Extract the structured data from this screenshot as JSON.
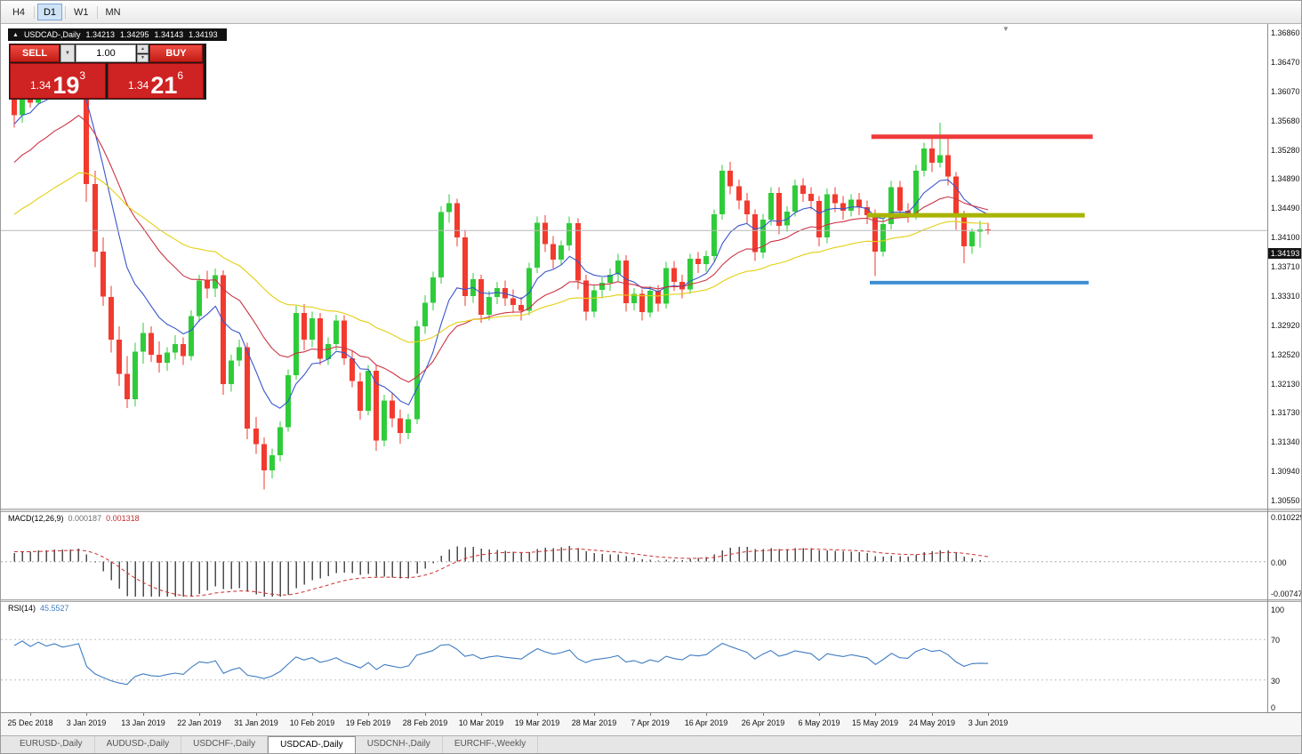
{
  "toolbar": {
    "timeframes": [
      {
        "label": "H4",
        "active": false
      },
      {
        "label": "D1",
        "active": true
      },
      {
        "label": "W1",
        "active": false
      },
      {
        "label": "MN",
        "active": false
      }
    ]
  },
  "header": {
    "collapse_icon": "▲",
    "symbol": "USDCAD-,Daily",
    "open": "1.34213",
    "high": "1.34295",
    "low": "1.34143",
    "close": "1.34193"
  },
  "trade_panel": {
    "sell_label": "SELL",
    "buy_label": "BUY",
    "volume": "1.00",
    "dropdown_icon": "▼",
    "spin_up_icon": "▲",
    "spin_down_icon": "▼",
    "bid": {
      "prefix": "1.34",
      "big": "19",
      "sup": "3"
    },
    "ask": {
      "prefix": "1.34",
      "big": "21",
      "sup": "6"
    }
  },
  "price_axis": {
    "labels": [
      "1.36860",
      "1.36470",
      "1.36070",
      "1.35680",
      "1.35280",
      "1.34890",
      "1.34490",
      "1.34100",
      "1.33710",
      "1.33310",
      "1.32920",
      "1.32520",
      "1.32130",
      "1.31730",
      "1.31340",
      "1.30940",
      "1.30550"
    ],
    "current_price": "1.34193"
  },
  "macd_panel": {
    "label": "MACD(12,26,9)",
    "value_main": "0.000187",
    "value_signal": "0.001318",
    "axis": [
      "0.010229",
      "0.00",
      "-0.007477"
    ]
  },
  "rsi_panel": {
    "label": "RSI(14)",
    "value": "45.5527",
    "axis": [
      "100",
      "70",
      "30",
      "0"
    ]
  },
  "misc": {
    "shift_marker": "▼"
  },
  "tabs": [
    {
      "label": "EURUSD-,Daily",
      "active": false
    },
    {
      "label": "AUDUSD-,Daily",
      "active": false
    },
    {
      "label": "USDCHF-,Daily",
      "active": false
    },
    {
      "label": "USDCAD-,Daily",
      "active": true
    },
    {
      "label": "USDCNH-,Daily",
      "active": false
    },
    {
      "label": "EURCHF-,Weekly",
      "active": false
    }
  ],
  "chart_data": {
    "type": "candlestick",
    "symbol": "USDCAD-",
    "timeframe": "Daily",
    "ylim": [
      1.3055,
      1.3686
    ],
    "current_price": 1.34193,
    "colors": {
      "bull": "#2fcc3a",
      "bear": "#f23a2e",
      "macd_hist": "#4d4d4d",
      "macd_signal": "#cc2f2f",
      "rsi_line": "#3f7cc1",
      "price_line": "#b8b8b8"
    },
    "candles": [
      [
        1.36,
        1.3615,
        1.3558,
        1.3575
      ],
      [
        1.3575,
        1.363,
        1.3565,
        1.3622
      ],
      [
        1.3622,
        1.3638,
        1.3585,
        1.3592
      ],
      [
        1.3592,
        1.3645,
        1.3588,
        1.3638
      ],
      [
        1.3638,
        1.3648,
        1.3608,
        1.3615
      ],
      [
        1.3615,
        1.3645,
        1.361,
        1.364
      ],
      [
        1.364,
        1.365,
        1.3612,
        1.3621
      ],
      [
        1.3621,
        1.3642,
        1.361,
        1.3636
      ],
      [
        1.3636,
        1.3665,
        1.3628,
        1.3655
      ],
      [
        1.3655,
        1.366,
        1.3458,
        1.3482
      ],
      [
        1.3482,
        1.35,
        1.337,
        1.3391
      ],
      [
        1.3391,
        1.341,
        1.3318,
        1.333
      ],
      [
        1.333,
        1.3345,
        1.3255,
        1.3272
      ],
      [
        1.3272,
        1.329,
        1.321,
        1.3226
      ],
      [
        1.3226,
        1.325,
        1.318,
        1.3192
      ],
      [
        1.3192,
        1.3268,
        1.3182,
        1.3256
      ],
      [
        1.3256,
        1.3295,
        1.324,
        1.3281
      ],
      [
        1.3281,
        1.329,
        1.3242,
        1.3252
      ],
      [
        1.3252,
        1.327,
        1.3228,
        1.3241
      ],
      [
        1.3241,
        1.3262,
        1.323,
        1.3255
      ],
      [
        1.3255,
        1.3278,
        1.3245,
        1.3266
      ],
      [
        1.3266,
        1.3275,
        1.3238,
        1.325
      ],
      [
        1.325,
        1.3312,
        1.3244,
        1.3304
      ],
      [
        1.3304,
        1.336,
        1.3296,
        1.3352
      ],
      [
        1.3352,
        1.3365,
        1.3328,
        1.3341
      ],
      [
        1.3341,
        1.3368,
        1.333,
        1.3359
      ],
      [
        1.3359,
        1.3366,
        1.3198,
        1.3212
      ],
      [
        1.3212,
        1.3252,
        1.3202,
        1.3244
      ],
      [
        1.3244,
        1.3272,
        1.3236,
        1.3262
      ],
      [
        1.3262,
        1.3268,
        1.3138,
        1.3152
      ],
      [
        1.3152,
        1.3168,
        1.3118,
        1.3131
      ],
      [
        1.3131,
        1.314,
        1.307,
        1.3096
      ],
      [
        1.3096,
        1.3125,
        1.3085,
        1.3116
      ],
      [
        1.3116,
        1.3162,
        1.3108,
        1.3154
      ],
      [
        1.3154,
        1.3232,
        1.3148,
        1.3224
      ],
      [
        1.3224,
        1.3318,
        1.3218,
        1.3308
      ],
      [
        1.3308,
        1.332,
        1.3258,
        1.3272
      ],
      [
        1.3272,
        1.331,
        1.3262,
        1.3301
      ],
      [
        1.3301,
        1.3308,
        1.3238,
        1.3246
      ],
      [
        1.3246,
        1.3275,
        1.3238,
        1.3266
      ],
      [
        1.3266,
        1.3306,
        1.3258,
        1.3298
      ],
      [
        1.3298,
        1.3305,
        1.3238,
        1.3247
      ],
      [
        1.3247,
        1.3258,
        1.3208,
        1.3216
      ],
      [
        1.3216,
        1.3228,
        1.3164,
        1.3176
      ],
      [
        1.3176,
        1.3238,
        1.317,
        1.323
      ],
      [
        1.323,
        1.3238,
        1.3122,
        1.3136
      ],
      [
        1.3136,
        1.3198,
        1.3128,
        1.319
      ],
      [
        1.319,
        1.32,
        1.3154,
        1.3166
      ],
      [
        1.3166,
        1.3178,
        1.3132,
        1.3146
      ],
      [
        1.3146,
        1.3172,
        1.3138,
        1.3165
      ],
      [
        1.3165,
        1.3298,
        1.3158,
        1.329
      ],
      [
        1.329,
        1.3332,
        1.328,
        1.3322
      ],
      [
        1.3322,
        1.3364,
        1.3312,
        1.3356
      ],
      [
        1.3356,
        1.3452,
        1.3348,
        1.3444
      ],
      [
        1.3444,
        1.3468,
        1.343,
        1.3456
      ],
      [
        1.3456,
        1.3462,
        1.3398,
        1.341
      ],
      [
        1.341,
        1.342,
        1.3318,
        1.3331
      ],
      [
        1.3331,
        1.3362,
        1.3322,
        1.3354
      ],
      [
        1.3354,
        1.336,
        1.3295,
        1.3306
      ],
      [
        1.3306,
        1.3338,
        1.3298,
        1.333
      ],
      [
        1.333,
        1.335,
        1.332,
        1.3342
      ],
      [
        1.3342,
        1.3352,
        1.3318,
        1.3328
      ],
      [
        1.3328,
        1.334,
        1.3308,
        1.3319
      ],
      [
        1.3319,
        1.333,
        1.3298,
        1.3311
      ],
      [
        1.3311,
        1.3376,
        1.3305,
        1.3369
      ],
      [
        1.3369,
        1.3438,
        1.3362,
        1.343
      ],
      [
        1.343,
        1.344,
        1.339,
        1.3401
      ],
      [
        1.3401,
        1.3412,
        1.3368,
        1.338
      ],
      [
        1.338,
        1.3406,
        1.3372,
        1.3399
      ],
      [
        1.3399,
        1.3438,
        1.3392,
        1.3429
      ],
      [
        1.3429,
        1.3436,
        1.334,
        1.3352
      ],
      [
        1.3352,
        1.336,
        1.3298,
        1.331
      ],
      [
        1.331,
        1.3346,
        1.3302,
        1.3339
      ],
      [
        1.3339,
        1.3356,
        1.3328,
        1.3349
      ],
      [
        1.3349,
        1.3368,
        1.3338,
        1.336
      ],
      [
        1.336,
        1.3388,
        1.335,
        1.3379
      ],
      [
        1.3379,
        1.3386,
        1.331,
        1.3321
      ],
      [
        1.3321,
        1.3342,
        1.3312,
        1.3334
      ],
      [
        1.3334,
        1.334,
        1.3298,
        1.3309
      ],
      [
        1.3309,
        1.3345,
        1.3302,
        1.3338
      ],
      [
        1.3338,
        1.3346,
        1.331,
        1.3321
      ],
      [
        1.3321,
        1.3377,
        1.3314,
        1.3369
      ],
      [
        1.3369,
        1.3378,
        1.3338,
        1.335
      ],
      [
        1.335,
        1.336,
        1.3328,
        1.334
      ],
      [
        1.334,
        1.3388,
        1.3334,
        1.3381
      ],
      [
        1.3381,
        1.339,
        1.3362,
        1.3374
      ],
      [
        1.3374,
        1.3392,
        1.3364,
        1.3385
      ],
      [
        1.3385,
        1.3448,
        1.3378,
        1.3441
      ],
      [
        1.3441,
        1.3508,
        1.3434,
        1.35
      ],
      [
        1.35,
        1.3512,
        1.3468,
        1.3479
      ],
      [
        1.3479,
        1.3488,
        1.3448,
        1.346
      ],
      [
        1.346,
        1.347,
        1.3428,
        1.3441
      ],
      [
        1.3441,
        1.3448,
        1.3378,
        1.339
      ],
      [
        1.339,
        1.3442,
        1.3382,
        1.3434
      ],
      [
        1.3434,
        1.3478,
        1.3426,
        1.347
      ],
      [
        1.347,
        1.3478,
        1.3414,
        1.3426
      ],
      [
        1.3426,
        1.3452,
        1.3418,
        1.3445
      ],
      [
        1.3445,
        1.3488,
        1.3438,
        1.348
      ],
      [
        1.348,
        1.349,
        1.3458,
        1.3469
      ],
      [
        1.3469,
        1.3478,
        1.3448,
        1.3459
      ],
      [
        1.3459,
        1.3466,
        1.3398,
        1.341
      ],
      [
        1.341,
        1.3476,
        1.3402,
        1.3468
      ],
      [
        1.3468,
        1.3478,
        1.3444,
        1.3456
      ],
      [
        1.3456,
        1.3466,
        1.3434,
        1.3446
      ],
      [
        1.3446,
        1.3468,
        1.3438,
        1.3461
      ],
      [
        1.3461,
        1.347,
        1.344,
        1.3451
      ],
      [
        1.3451,
        1.346,
        1.3428,
        1.344
      ],
      [
        1.344,
        1.3448,
        1.3358,
        1.3391
      ],
      [
        1.3391,
        1.3436,
        1.3384,
        1.3428
      ],
      [
        1.3428,
        1.3486,
        1.3421,
        1.3478
      ],
      [
        1.3478,
        1.3486,
        1.3436,
        1.3446
      ],
      [
        1.3446,
        1.3456,
        1.343,
        1.3441
      ],
      [
        1.3441,
        1.3508,
        1.3434,
        1.35
      ],
      [
        1.35,
        1.3538,
        1.3492,
        1.353
      ],
      [
        1.353,
        1.3546,
        1.3498,
        1.3511
      ],
      [
        1.3511,
        1.3565,
        1.3504,
        1.3521
      ],
      [
        1.3521,
        1.3548,
        1.348,
        1.3492
      ],
      [
        1.3492,
        1.3498,
        1.342,
        1.3438
      ],
      [
        1.3438,
        1.3446,
        1.3375,
        1.3398
      ],
      [
        1.3398,
        1.3422,
        1.3388,
        1.3418
      ],
      [
        1.3418,
        1.3432,
        1.3396,
        1.3421
      ],
      [
        1.3421,
        1.343,
        1.3414,
        1.3419
      ]
    ],
    "x_axis": [
      {
        "bar": 2,
        "label": "25 Dec 2018"
      },
      {
        "bar": 9,
        "label": "3 Jan 2019"
      },
      {
        "bar": 16,
        "label": "13 Jan 2019"
      },
      {
        "bar": 23,
        "label": "22 Jan 2019"
      },
      {
        "bar": 30,
        "label": "31 Jan 2019"
      },
      {
        "bar": 37,
        "label": "10 Feb 2019"
      },
      {
        "bar": 44,
        "label": "19 Feb 2019"
      },
      {
        "bar": 51,
        "label": "28 Feb 2019"
      },
      {
        "bar": 58,
        "label": "10 Mar 2019"
      },
      {
        "bar": 65,
        "label": "19 Mar 2019"
      },
      {
        "bar": 72,
        "label": "28 Mar 2019"
      },
      {
        "bar": 79,
        "label": "7 Apr 2019"
      },
      {
        "bar": 86,
        "label": "16 Apr 2019"
      },
      {
        "bar": 93,
        "label": "26 Apr 2019"
      },
      {
        "bar": 100,
        "label": "6 May 2019"
      },
      {
        "bar": 107,
        "label": "15 May 2019"
      },
      {
        "bar": 114,
        "label": "24 May 2019"
      },
      {
        "bar": 121,
        "label": "3 Jun 2019"
      }
    ],
    "levels": [
      {
        "name": "resistance",
        "price": 1.3546,
        "color": "#ef3b3b",
        "width": 5,
        "bar_start": 106.5,
        "bar_end": 134
      },
      {
        "name": "pivot",
        "price": 1.344,
        "color": "#a9b400",
        "width": 5,
        "bar_start": 106,
        "bar_end": 133
      },
      {
        "name": "support",
        "price": 1.3349,
        "color": "#3d8fd4",
        "width": 4,
        "bar_start": 106.3,
        "bar_end": 133.5
      }
    ],
    "moving_averages": [
      {
        "name": "ma-fast-blue",
        "period": 9,
        "seed": 1.356,
        "color": "#3a55cc"
      },
      {
        "name": "ma-mid-red",
        "period": 21,
        "seed": 1.3505,
        "color": "#cc3344"
      },
      {
        "name": "ma-slow-yellow",
        "period": 45,
        "seed": 1.3435,
        "color": "#e3cf12"
      }
    ],
    "macd": {
      "fast": 12,
      "slow": 26,
      "signal_period": 9,
      "ylim": [
        -0.007477,
        0.010229
      ],
      "seed_fast_offset": -0.0005,
      "seed_slow_offset": -0.0025,
      "seed_signal": 0.0022
    },
    "rsi": {
      "period": 14,
      "seed_gain": 0.0016,
      "seed_loss": 0.0009,
      "levels": [
        70,
        30
      ],
      "last_value": 45.5527
    }
  }
}
